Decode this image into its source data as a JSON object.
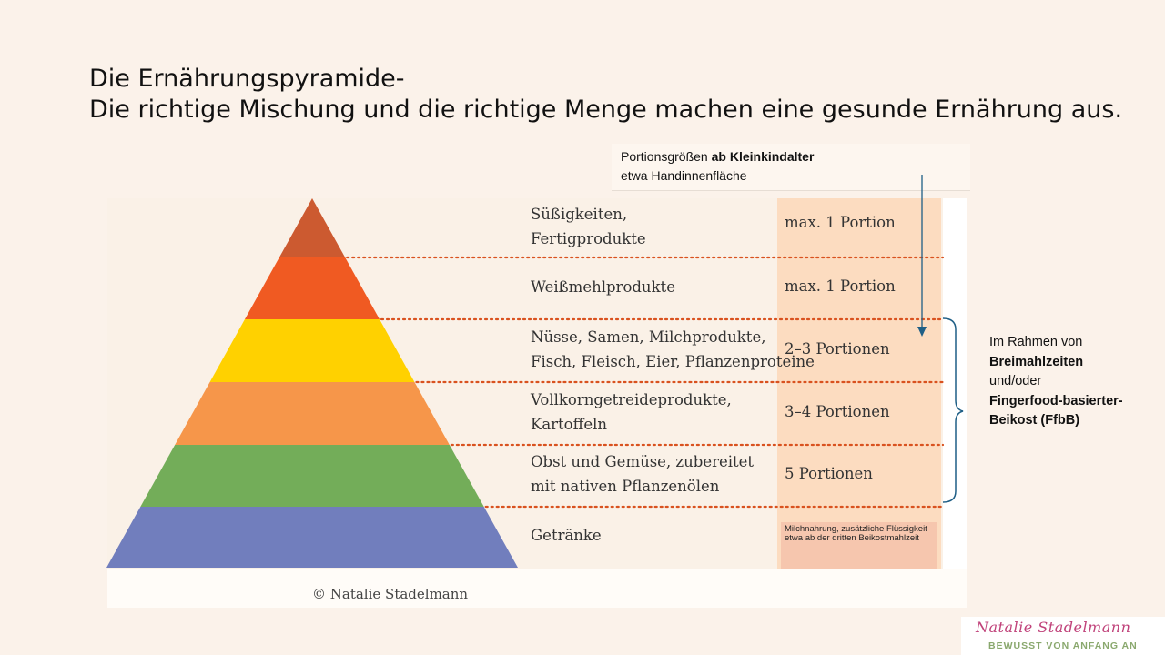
{
  "title": {
    "line1": "Die Ernährungspyramide-",
    "line2": "Die richtige Mischung und die richtige Menge machen eine gesunde Ernährung aus."
  },
  "header_note": {
    "prefix": "Portionsgrößen ",
    "bold": "ab Kleinkindalter",
    "line2": "etwa Handinnenfläche"
  },
  "pyramid_levels": [
    {
      "lines": [
        "Süßigkeiten,",
        "Fertigprodukte"
      ],
      "portion": "max. 1 Portion",
      "color": "#cc5a30"
    },
    {
      "lines": [
        "Weißmehlprodukte"
      ],
      "portion": "max. 1 Portion",
      "color": "#f05a22"
    },
    {
      "lines": [
        "Nüsse, Samen, Milchprodukte,",
        "Fisch, Fleisch, Eier, Pflanzenproteine"
      ],
      "portion": "2–3 Portionen",
      "color": "#ffd100"
    },
    {
      "lines": [
        "Vollkorngetreideprodukte,",
        "Kartoffeln"
      ],
      "portion": "3–4 Portionen",
      "color": "#f6964a"
    },
    {
      "lines": [
        "Obst und Gemüse, zubereitet",
        "mit nativen Pflanzenölen"
      ],
      "portion": "5 Portionen",
      "color": "#73ad59"
    },
    {
      "lines": [
        "Getränke"
      ],
      "portion": "Milchnahrung, zusätzliche Flüssigkeit etwa ab der dritten Beikostmahlzeit",
      "color": "#717ebd"
    }
  ],
  "side_note": {
    "t1": "Im Rahmen von",
    "b1": "Breimahlzeiten",
    "t2": "und/oder",
    "b2": "Fingerfood-basierter-Beikost (FfbB)"
  },
  "copyright": "© Natalie Stadelmann",
  "logo": {
    "name": "Natalie Stadelmann",
    "tagline": "BEWUSST VON ANFANG AN"
  },
  "colors": {
    "background": "#fbf2ea",
    "portion_column": "#fcdcc0",
    "dotted_line": "#d9521f",
    "arrow": "#1f5f86",
    "logo_name": "#c0427a",
    "logo_tagline": "#8aa86e"
  }
}
